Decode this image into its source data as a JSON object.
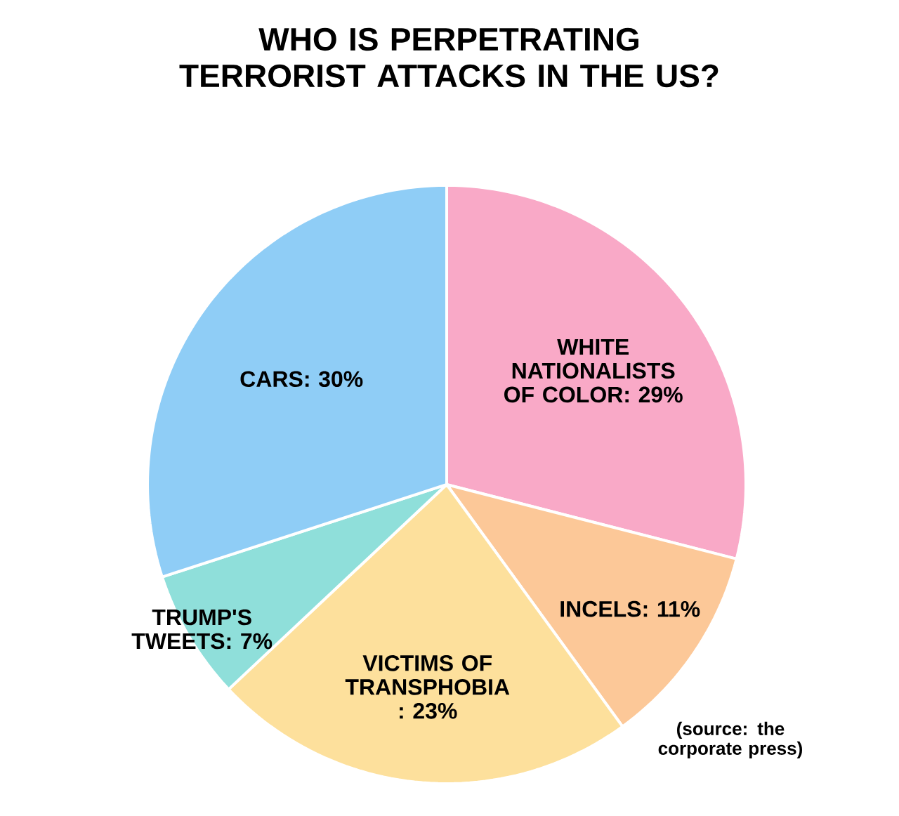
{
  "chart_data": {
    "type": "pie",
    "title": "WHO IS PERPETRATING TERRORIST ATTACKS IN THE US?",
    "categories": [
      "WHITE NATIONALISTS OF COLOR",
      "INCELS",
      "VICTIMS OF TRANSPHOBIA",
      "TRUMP'S TWEETS",
      "CARS"
    ],
    "values": [
      29,
      11,
      23,
      7,
      30
    ],
    "colors": [
      "#f9a9c7",
      "#fcc898",
      "#fde09c",
      "#8fdfda",
      "#8fcdf6"
    ],
    "value_labels": [
      ": 29%",
      ": 11%",
      ": 23%",
      ": 7%",
      ": 30%"
    ],
    "annotations": [
      "(source: the corporate press)"
    ]
  }
}
